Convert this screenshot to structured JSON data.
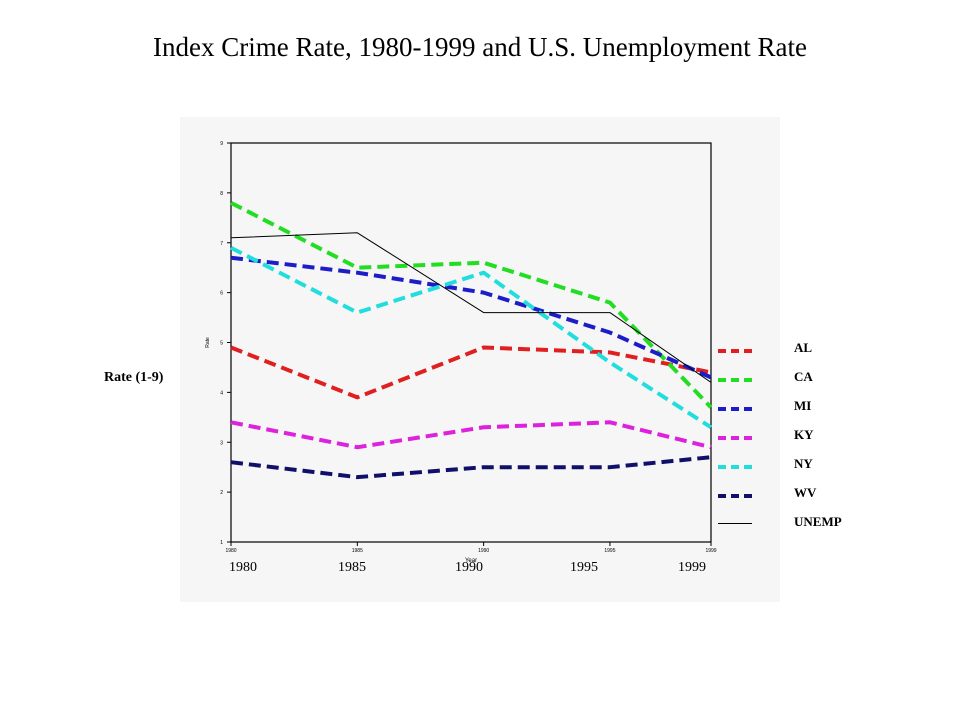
{
  "page": {
    "title": "Index Crime Rate, 1980-1999 and U.S. Unemployment Rate",
    "y_label_outer": "Rate (1-9)",
    "x_big_ticks": [
      "1980",
      "1985",
      "1990",
      "1995",
      "1999"
    ]
  },
  "chart_data": {
    "type": "line",
    "title": "",
    "xlabel": "Year",
    "ylabel": "Rate",
    "x": [
      1980,
      1985,
      1990,
      1995,
      1999
    ],
    "xlim": [
      1980,
      1999
    ],
    "ylim": [
      1,
      9
    ],
    "y_ticks": [
      "1",
      "2",
      "3",
      "4",
      "5",
      "6",
      "7",
      "8",
      "9"
    ],
    "x_ticks": [
      "1980",
      "1985",
      "1990",
      "1995",
      "1999"
    ],
    "grid": false,
    "legend_position": "right",
    "series": [
      {
        "name": "AL",
        "color": "#e02020",
        "dashed": true,
        "values": [
          4.9,
          3.9,
          4.9,
          4.8,
          4.4
        ]
      },
      {
        "name": "CA",
        "color": "#22dd22",
        "dashed": true,
        "values": [
          7.8,
          6.5,
          6.6,
          5.8,
          3.7
        ]
      },
      {
        "name": "MI",
        "color": "#1c1cc8",
        "dashed": true,
        "values": [
          6.7,
          6.4,
          6.0,
          5.2,
          4.3
        ]
      },
      {
        "name": "KY",
        "color": "#dd22dd",
        "dashed": true,
        "values": [
          3.4,
          2.9,
          3.3,
          3.4,
          2.9
        ]
      },
      {
        "name": "NY",
        "color": "#22dddd",
        "dashed": true,
        "values": [
          6.9,
          5.6,
          6.4,
          4.6,
          3.3
        ]
      },
      {
        "name": "WV",
        "color": "#10106a",
        "dashed": true,
        "values": [
          2.6,
          2.3,
          2.5,
          2.5,
          2.7
        ]
      },
      {
        "name": "UNEMP",
        "color": "#000000",
        "dashed": false,
        "values": [
          7.1,
          7.2,
          5.6,
          5.6,
          4.2
        ]
      }
    ]
  }
}
